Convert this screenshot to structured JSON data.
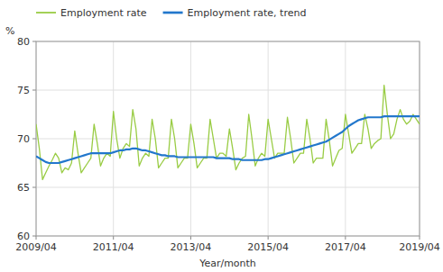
{
  "chart_data": {
    "type": "line",
    "xlabel": "Year/month",
    "ylabel": "%",
    "categories": [
      "2009/04",
      null,
      null,
      null,
      null,
      null,
      null,
      null,
      null,
      null,
      null,
      null,
      null,
      null,
      null,
      null,
      null,
      null,
      null,
      null,
      null,
      null,
      null,
      null,
      "2011/04",
      null,
      null,
      null,
      null,
      null,
      null,
      null,
      null,
      null,
      null,
      null,
      null,
      null,
      null,
      null,
      null,
      null,
      null,
      null,
      null,
      null,
      null,
      null,
      "2013/04",
      null,
      null,
      null,
      null,
      null,
      null,
      null,
      null,
      null,
      null,
      null,
      null,
      null,
      null,
      null,
      null,
      null,
      null,
      null,
      null,
      null,
      null,
      null,
      "2015/04",
      null,
      null,
      null,
      null,
      null,
      null,
      null,
      null,
      null,
      null,
      null,
      null,
      null,
      null,
      null,
      null,
      null,
      null,
      null,
      null,
      null,
      null,
      null,
      "2017/04",
      null,
      null,
      null,
      null,
      null,
      null,
      null,
      null,
      null,
      null,
      null,
      null,
      null,
      null,
      null,
      null,
      null,
      null,
      null,
      null,
      null,
      null,
      "2019/04"
    ],
    "series": [
      {
        "name": "Employment rate",
        "color": "#99cc44",
        "values": [
          71.5,
          69.0,
          65.8,
          66.5,
          67.2,
          67.8,
          68.5,
          68.0,
          66.5,
          67.0,
          66.8,
          67.5,
          70.8,
          68.5,
          66.5,
          67.0,
          67.5,
          68.0,
          71.5,
          69.5,
          67.2,
          68.0,
          68.5,
          68.2,
          72.8,
          70.0,
          68.0,
          69.0,
          69.5,
          69.2,
          73.0,
          71.0,
          67.2,
          68.0,
          68.5,
          68.2,
          72.0,
          70.0,
          67.0,
          67.5,
          68.0,
          68.0,
          72.0,
          70.0,
          67.0,
          67.5,
          68.0,
          68.0,
          71.5,
          69.5,
          67.0,
          67.5,
          68.0,
          68.0,
          72.0,
          70.0,
          68.0,
          68.5,
          68.5,
          68.2,
          71.0,
          69.0,
          66.8,
          67.5,
          68.0,
          68.2,
          72.5,
          70.0,
          67.2,
          68.0,
          68.5,
          68.2,
          72.0,
          70.0,
          68.0,
          68.5,
          68.5,
          68.5,
          72.2,
          70.0,
          67.5,
          68.0,
          68.5,
          68.5,
          72.0,
          70.0,
          67.5,
          68.0,
          68.0,
          68.0,
          72.0,
          69.8,
          67.2,
          68.0,
          68.8,
          69.0,
          72.5,
          70.5,
          68.5,
          69.0,
          69.5,
          69.5,
          72.5,
          71.0,
          69.0,
          69.5,
          69.8,
          70.0,
          75.5,
          72.5,
          70.0,
          70.5,
          72.0,
          73.0,
          72.0,
          71.5,
          71.8,
          72.5,
          72.0,
          71.5
        ]
      },
      {
        "name": "Employment rate, trend",
        "color": "#2277cc",
        "values": [
          68.2,
          68.0,
          67.8,
          67.6,
          67.5,
          67.5,
          67.5,
          67.5,
          67.6,
          67.7,
          67.8,
          67.9,
          68.0,
          68.1,
          68.2,
          68.3,
          68.4,
          68.5,
          68.5,
          68.5,
          68.5,
          68.5,
          68.5,
          68.5,
          68.6,
          68.7,
          68.8,
          68.8,
          68.9,
          68.9,
          69.0,
          69.0,
          68.9,
          68.8,
          68.8,
          68.7,
          68.6,
          68.5,
          68.4,
          68.3,
          68.3,
          68.2,
          68.2,
          68.2,
          68.1,
          68.1,
          68.1,
          68.1,
          68.1,
          68.1,
          68.1,
          68.1,
          68.1,
          68.1,
          68.1,
          68.1,
          68.0,
          68.0,
          68.0,
          68.0,
          68.0,
          67.9,
          67.9,
          67.9,
          67.8,
          67.8,
          67.8,
          67.8,
          67.8,
          67.8,
          67.8,
          67.9,
          67.9,
          68.0,
          68.1,
          68.2,
          68.3,
          68.4,
          68.5,
          68.6,
          68.7,
          68.8,
          68.9,
          69.0,
          69.1,
          69.2,
          69.3,
          69.4,
          69.5,
          69.6,
          69.7,
          69.9,
          70.1,
          70.3,
          70.5,
          70.7,
          71.0,
          71.3,
          71.5,
          71.7,
          71.9,
          72.0,
          72.1,
          72.2,
          72.2,
          72.2,
          72.2,
          72.2,
          72.3,
          72.3,
          72.3,
          72.3,
          72.3,
          72.3,
          72.3,
          72.3,
          72.3,
          72.3,
          72.3,
          72.3
        ]
      }
    ],
    "ylim": [
      60,
      80
    ],
    "yticks": [
      60,
      65,
      70,
      75,
      80
    ],
    "grid": true,
    "legend": "top"
  }
}
